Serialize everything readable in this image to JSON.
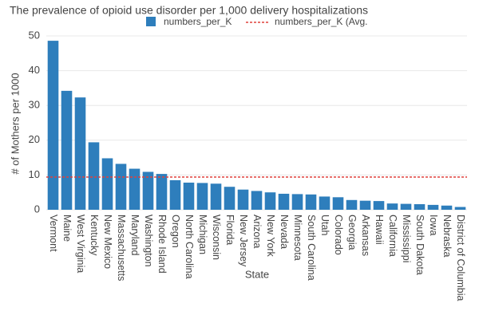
{
  "chart_data": {
    "type": "bar",
    "title": "The prevalence of opioid use disorder per 1,000 delivery hospitalizations",
    "x_label": "State",
    "y_label": "# of Mothers per 1000",
    "categories": [
      "Vermont",
      "Maine",
      "West Virginia",
      "Kentucky",
      "New Mexico",
      "Massachusetts",
      "Maryland",
      "Washington",
      "Rhode Island",
      "Oregon",
      "North Carolina",
      "Michigan",
      "Wisconsin",
      "Florida",
      "New Jersey",
      "Arizona",
      "New York",
      "Nevada",
      "Minnesota",
      "South Carolina",
      "Utah",
      "Colorado",
      "Georgia",
      "Arkansas",
      "Hawaii",
      "California",
      "Mississippi",
      "South Dakota",
      "Iowa",
      "Nebraska",
      "District of Columbia"
    ],
    "series": [
      {
        "name": "numbers_per_K",
        "color": "#2e7ebc",
        "values": [
          48.6,
          34.2,
          32.3,
          19.4,
          14.8,
          13.2,
          11.8,
          10.9,
          10.3,
          8.5,
          7.8,
          7.7,
          7.5,
          6.6,
          5.8,
          5.4,
          5.0,
          4.6,
          4.5,
          4.4,
          3.8,
          3.6,
          2.8,
          2.6,
          2.5,
          1.8,
          1.7,
          1.6,
          1.4,
          1.2,
          0.8
        ]
      }
    ],
    "average": {
      "name": "numbers_per_K (Avg.",
      "value": 9.4,
      "color": "#e0403c"
    },
    "ylim": [
      0,
      50
    ],
    "yticks": [
      0,
      10,
      20,
      30,
      40,
      50
    ],
    "grid": true
  }
}
